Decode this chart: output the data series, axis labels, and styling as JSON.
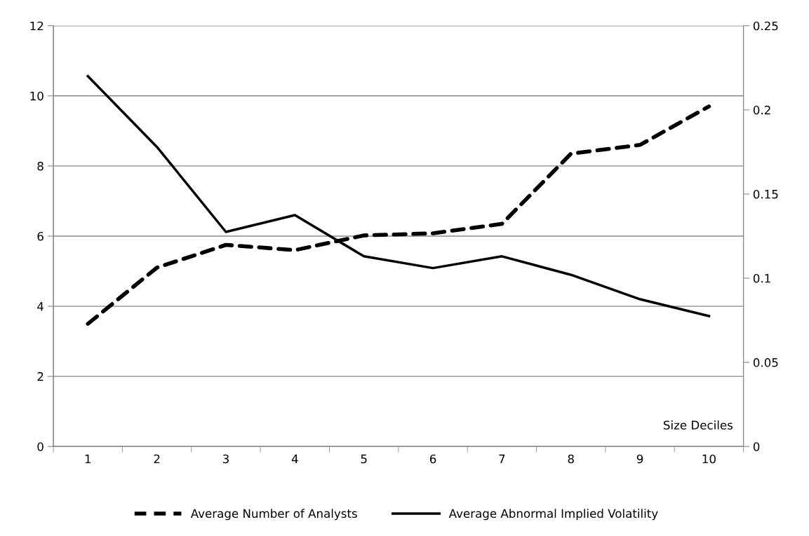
{
  "chart_data": {
    "type": "line",
    "xlabel": "Size Deciles",
    "categories": [
      "1",
      "2",
      "3",
      "4",
      "5",
      "6",
      "7",
      "8",
      "9",
      "10"
    ],
    "series": [
      {
        "name": "Average Number of Analysts",
        "color": "#000000",
        "line_style": "dashed",
        "values": [
          3.5,
          5.1,
          5.75,
          5.6,
          6.02,
          6.08,
          6.35,
          8.35,
          8.6,
          9.7
        ]
      },
      {
        "name": "Average Abnormal Implied Volatility",
        "color": "#000000",
        "line_style": "solid",
        "axis": "y2",
        "values": [
          0.22,
          0.178,
          0.1275,
          0.1375,
          0.113,
          0.106,
          0.113,
          0.102,
          0.0875,
          0.0775
        ]
      }
    ],
    "ylim": [
      0,
      12
    ],
    "yticks": [
      0,
      2,
      4,
      6,
      8,
      10,
      12
    ],
    "y2lim": [
      0,
      0.25
    ],
    "y2ticks": [
      0,
      0.05,
      0.1,
      0.15,
      0.2,
      0.25
    ],
    "grid": "y",
    "legend": "bottom",
    "marker": "none"
  }
}
